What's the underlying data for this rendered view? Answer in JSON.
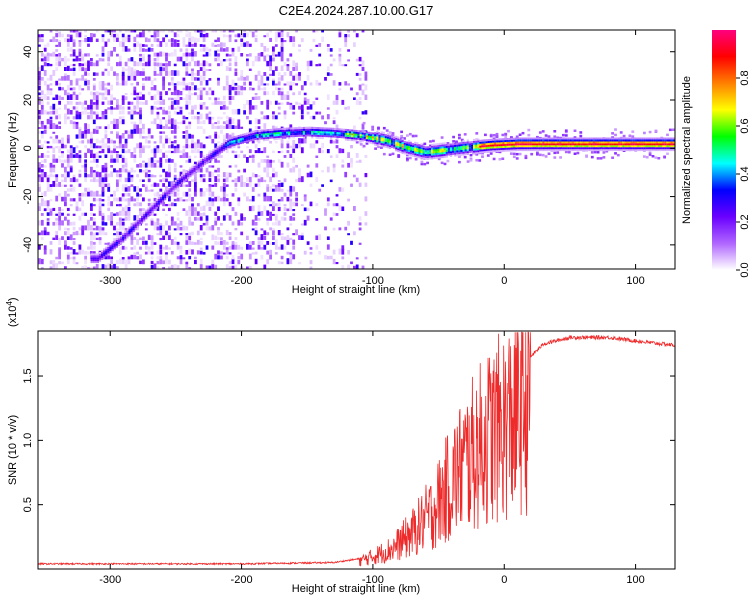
{
  "title": "C2E4.2024.287.10.00.G17",
  "colorbar": {
    "label": "Normalized spectral amplitude",
    "ticks": [
      "0.0",
      "0.2",
      "0.4",
      "0.6",
      "0.8"
    ],
    "tick_values": [
      0.0,
      0.2,
      0.4,
      0.6,
      0.8
    ],
    "range": [
      0,
      1
    ],
    "colors": [
      "#ffffff",
      "#b066ff",
      "#6a00ff",
      "#0000ff",
      "#00ffff",
      "#00ff00",
      "#ffff00",
      "#ff8000",
      "#ff0000",
      "#ff007f"
    ]
  },
  "chart_data": [
    {
      "type": "heatmap",
      "xlabel": "Height of straight line (km)",
      "ylabel": "Frequency (Hz)",
      "xlim": [
        -355,
        130
      ],
      "ylim": [
        -50,
        49
      ],
      "xticks": [
        -300,
        -200,
        -100,
        0,
        100
      ],
      "xtick_labels": [
        "-300",
        "-200",
        "-100",
        "0",
        "100"
      ],
      "yticks": [
        -40,
        -20,
        0,
        20,
        40
      ],
      "ytick_labels": [
        "-40",
        "-20",
        "0",
        "20",
        "40"
      ],
      "ridge": [
        {
          "x": -310,
          "y": -46
        },
        {
          "x": -290,
          "y": -37
        },
        {
          "x": -270,
          "y": -26
        },
        {
          "x": -250,
          "y": -15
        },
        {
          "x": -230,
          "y": -6
        },
        {
          "x": -210,
          "y": 2
        },
        {
          "x": -190,
          "y": 5
        },
        {
          "x": -170,
          "y": 6
        },
        {
          "x": -150,
          "y": 6.5
        },
        {
          "x": -130,
          "y": 6
        },
        {
          "x": -110,
          "y": 5
        },
        {
          "x": -90,
          "y": 3
        },
        {
          "x": -75,
          "y": 0
        },
        {
          "x": -60,
          "y": -2
        },
        {
          "x": -45,
          "y": -1
        },
        {
          "x": -30,
          "y": 0
        },
        {
          "x": -10,
          "y": 1
        },
        {
          "x": 10,
          "y": 1.5
        },
        {
          "x": 40,
          "y": 1.5
        },
        {
          "x": 80,
          "y": 1.5
        },
        {
          "x": 130,
          "y": 1.5
        }
      ]
    },
    {
      "type": "line",
      "xlabel": "Height of straight line (km)",
      "ylabel": "SNR (10 * v/v)",
      "scale_label": "(x10",
      "scale_exponent": "4",
      "scale_suffix": ")",
      "xlim": [
        -355,
        130
      ],
      "ylim": [
        0,
        1.85
      ],
      "xticks": [
        -300,
        -200,
        -100,
        0,
        100
      ],
      "xtick_labels": [
        "-300",
        "-200",
        "-100",
        "0",
        "100"
      ],
      "yticks": [
        0.5,
        1.0,
        1.5
      ],
      "ytick_labels": [
        "0.5",
        "1.0",
        "1.5"
      ],
      "line_color": "#ee2a2a",
      "envelope": [
        {
          "x": -355,
          "y": 0.04
        },
        {
          "x": -200,
          "y": 0.04
        },
        {
          "x": -130,
          "y": 0.05
        },
        {
          "x": -110,
          "y": 0.08
        },
        {
          "x": -100,
          "y": 0.12
        },
        {
          "x": -85,
          "y": 0.2
        },
        {
          "x": -70,
          "y": 0.35
        },
        {
          "x": -55,
          "y": 0.55
        },
        {
          "x": -45,
          "y": 0.75
        },
        {
          "x": -35,
          "y": 0.95
        },
        {
          "x": -25,
          "y": 1.1
        },
        {
          "x": -15,
          "y": 1.25
        },
        {
          "x": -5,
          "y": 1.35
        },
        {
          "x": 5,
          "y": 1.45
        },
        {
          "x": 15,
          "y": 1.6
        },
        {
          "x": 30,
          "y": 1.75
        },
        {
          "x": 50,
          "y": 1.8
        },
        {
          "x": 80,
          "y": 1.8
        },
        {
          "x": 110,
          "y": 1.76
        },
        {
          "x": 130,
          "y": 1.74
        }
      ]
    }
  ]
}
